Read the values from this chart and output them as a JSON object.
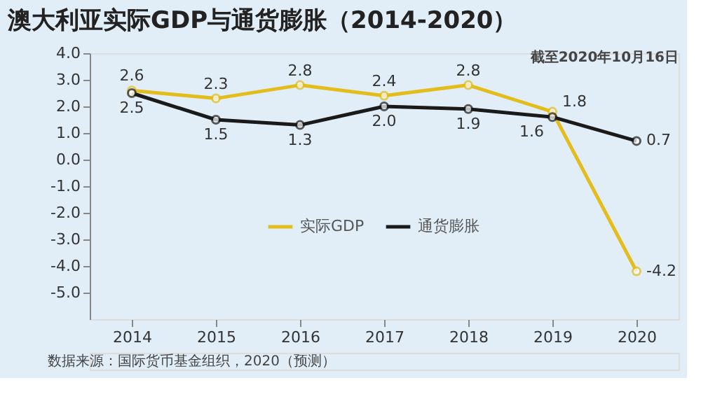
{
  "chart_data": {
    "type": "line",
    "title": "澳大利亚实际GDP与通货膨胀（2014-2020）",
    "subtitle": "截至2020年10月16日",
    "categories": [
      "2014",
      "2015",
      "2016",
      "2017",
      "2018",
      "2019",
      "2020"
    ],
    "series": [
      {
        "name": "实际GDP",
        "color": "#e3bd1c",
        "values": [
          2.6,
          2.3,
          2.8,
          2.4,
          2.8,
          1.8,
          -4.2
        ],
        "value_labels": [
          "2.6",
          "2.3",
          "2.8",
          "2.4",
          "2.8",
          "1.8",
          "-4.2"
        ]
      },
      {
        "name": "通货膨胀",
        "color": "#1a1a1a",
        "values": [
          2.5,
          1.5,
          1.3,
          2.0,
          1.9,
          1.6,
          0.7
        ],
        "value_labels": [
          "2.5",
          "1.5",
          "1.3",
          "2.0",
          "1.9",
          "1.6",
          "0.7"
        ]
      }
    ],
    "ylim": [
      -6,
      4
    ],
    "yticks": [
      {
        "value": 4,
        "label": "4.0"
      },
      {
        "value": 3,
        "label": "3.0"
      },
      {
        "value": 2,
        "label": "2.0"
      },
      {
        "value": 1,
        "label": "1.0"
      },
      {
        "value": 0,
        "label": "0.0"
      },
      {
        "value": -1,
        "label": "-1.0"
      },
      {
        "value": -2,
        "label": "-2.0"
      },
      {
        "value": -3,
        "label": "-3.0"
      },
      {
        "value": -4,
        "label": "-4.0"
      },
      {
        "value": -5,
        "label": "-5.0"
      }
    ],
    "legend": "bottom",
    "grid": false,
    "marker": "circle",
    "line_style": "solid",
    "annotations": [
      "数据来源：国际货币基金组织，2020（预测）"
    ]
  }
}
